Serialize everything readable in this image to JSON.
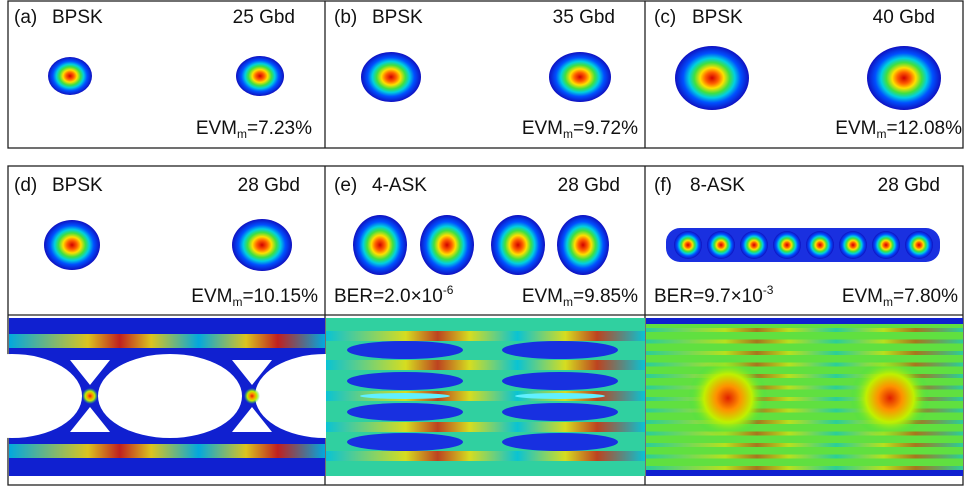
{
  "panels": [
    {
      "label": "(a)",
      "format": "BPSK",
      "rate": "25 Gbd",
      "evm": {
        "base": "EVM",
        "sub": "m",
        "value": "=7.23%"
      }
    },
    {
      "label": "(b)",
      "format": "BPSK",
      "rate": "35 Gbd",
      "evm": {
        "base": "EVM",
        "sub": "m",
        "value": "=9.72%"
      }
    },
    {
      "label": "(c)",
      "format": "BPSK",
      "rate": "40 Gbd",
      "evm": {
        "base": "EVM",
        "sub": "m",
        "value": "=12.08%"
      }
    },
    {
      "label": "(d)",
      "format": "BPSK",
      "rate": "28 Gbd",
      "evm": {
        "base": "EVM",
        "sub": "m",
        "value": "=10.15%"
      }
    },
    {
      "label": "(e)",
      "format": "4-ASK",
      "rate": "28 Gbd",
      "evm": {
        "base": "EVM",
        "sub": "m",
        "value": "=9.85%"
      },
      "ber": {
        "base": "BER=2.0×10",
        "sup": "-6"
      }
    },
    {
      "label": "(f)",
      "format": "8-ASK",
      "rate": "28 Gbd",
      "evm": {
        "base": "EVM",
        "sub": "m",
        "value": "=7.80%"
      },
      "ber": {
        "base": "BER=9.7×10",
        "sup": "-3"
      }
    }
  ]
}
